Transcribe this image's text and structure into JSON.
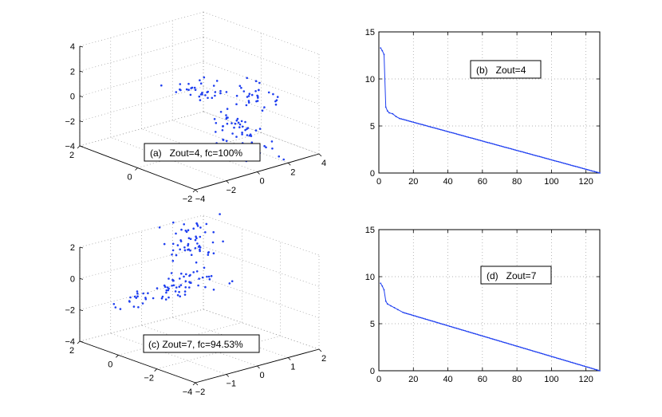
{
  "chart_data": [
    {
      "id": "a",
      "type": "scatter",
      "projection": "3d",
      "annotation": "(a)   Zout=4, fc=100%",
      "axes": {
        "z_ticks": [
          "4",
          "2",
          "0",
          "−2",
          "−4"
        ],
        "front_ticks": [
          "2",
          "0",
          "−2"
        ],
        "right_ticks": [
          "−4",
          "−2",
          "0",
          "2",
          "4"
        ]
      },
      "clusters": [
        {
          "name": "",
          "center": [
            0.0,
            -2.0,
            2.0
          ],
          "spread": [
            0.35,
            0.35,
            0.55
          ],
          "count": 30
        },
        {
          "name": "",
          "center": [
            -1.4,
            -2.5,
            -1.0
          ],
          "spread": [
            0.6,
            0.5,
            0.3
          ],
          "count": 30
        },
        {
          "name": "",
          "center": [
            0.9,
            -0.8,
            -1.6
          ],
          "spread": [
            0.45,
            0.35,
            0.35
          ],
          "count": 34
        },
        {
          "name": "",
          "center": [
            2.6,
            1.4,
            -1.3
          ],
          "spread": [
            0.7,
            0.35,
            0.3
          ],
          "count": 34
        }
      ],
      "marker_color": "#1f3ff0",
      "grid": true
    },
    {
      "id": "b",
      "type": "line",
      "annotation": "(b)   Zout=4",
      "xlim": [
        0,
        128
      ],
      "ylim": [
        0,
        15
      ],
      "xticks": [
        0,
        20,
        40,
        60,
        80,
        100,
        120
      ],
      "yticks": [
        0,
        5,
        10,
        15
      ],
      "series": [
        {
          "name": "",
          "head": [
            [
              1,
              13.3
            ],
            [
              2,
              13.0
            ],
            [
              3,
              12.6
            ],
            [
              4,
              7.0
            ],
            [
              5,
              6.6
            ],
            [
              6,
              6.4
            ],
            [
              8,
              6.3
            ],
            [
              10,
              6.0
            ],
            [
              12,
              5.8
            ]
          ],
          "tail": [
            [
              12,
              5.8
            ],
            [
              128,
              0.0
            ]
          ],
          "color": "#1f3ff0"
        }
      ],
      "grid": true
    },
    {
      "id": "c",
      "type": "scatter",
      "projection": "3d",
      "annotation": "(c) Zout=7, fc=94.53%",
      "axes": {
        "z_ticks": [
          "2",
          "0",
          "−2",
          "−4"
        ],
        "front_ticks": [
          "2",
          "0",
          "−2",
          "−4"
        ],
        "right_ticks": [
          "−2",
          "−1",
          "0",
          "1",
          "2"
        ]
      },
      "clusters": [
        {
          "name": "",
          "center": [
            -1.8,
            -1.4,
            0.4
          ],
          "spread": [
            0.8,
            0.3,
            0.25
          ],
          "count": 28
        },
        {
          "name": "",
          "center": [
            0.2,
            -0.1,
            -0.5
          ],
          "spread": [
            0.55,
            0.35,
            0.4
          ],
          "count": 45
        },
        {
          "name": "",
          "center": [
            0.9,
            0.8,
            1.0
          ],
          "spread": [
            0.35,
            0.3,
            0.6
          ],
          "count": 40
        },
        {
          "name": "",
          "center": [
            1.5,
            1.6,
            1.9
          ],
          "spread": [
            0.4,
            0.3,
            0.3
          ],
          "count": 15
        }
      ],
      "marker_color": "#1f3ff0",
      "grid": true
    },
    {
      "id": "d",
      "type": "line",
      "annotation": "(d)   Zout=7",
      "xlim": [
        0,
        128
      ],
      "ylim": [
        0,
        15
      ],
      "xticks": [
        0,
        20,
        40,
        60,
        80,
        100,
        120
      ],
      "yticks": [
        0,
        5,
        10,
        15
      ],
      "series": [
        {
          "name": "",
          "head": [
            [
              1,
              9.3
            ],
            [
              2,
              9.0
            ],
            [
              3,
              8.6
            ],
            [
              4,
              7.4
            ],
            [
              5,
              7.1
            ],
            [
              7,
              6.9
            ],
            [
              9,
              6.7
            ],
            [
              11,
              6.5
            ],
            [
              14,
              6.2
            ]
          ],
          "tail": [
            [
              14,
              6.2
            ],
            [
              128,
              0.0
            ]
          ],
          "color": "#1f3ff0"
        }
      ],
      "grid": true
    }
  ]
}
